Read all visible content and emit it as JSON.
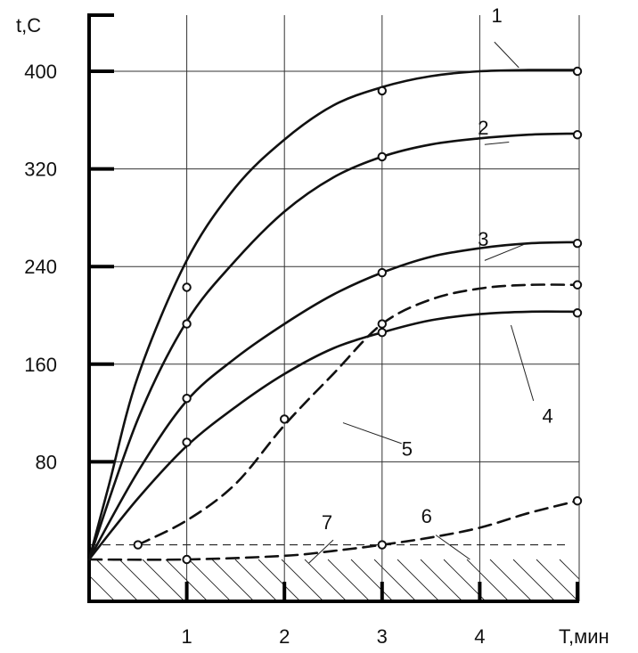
{
  "chart_data": {
    "type": "line",
    "title": "",
    "xlabel": "T,мин",
    "ylabel": "t,C",
    "xlim": [
      0,
      5
    ],
    "ylim": [
      -40,
      440
    ],
    "grid": true,
    "x_ticks": [
      {
        "value": 1,
        "label": "1"
      },
      {
        "value": 2,
        "label": "2"
      },
      {
        "value": 3,
        "label": "3"
      },
      {
        "value": 4,
        "label": "4"
      }
    ],
    "y_ticks": [
      {
        "value": 80,
        "label": "80"
      },
      {
        "value": 160,
        "label": "160"
      },
      {
        "value": 240,
        "label": "240"
      },
      {
        "value": 320,
        "label": "320"
      },
      {
        "value": 400,
        "label": "400"
      }
    ],
    "hatched_band": [
      -40,
      0
    ],
    "reference_line": {
      "y": 12,
      "style": "dashed"
    },
    "series": [
      {
        "name": "1",
        "style": "solid",
        "points": [
          [
            0,
            0
          ],
          [
            0.2,
            60
          ],
          [
            0.5,
            150
          ],
          [
            1,
            245
          ],
          [
            1.5,
            305
          ],
          [
            2,
            344
          ],
          [
            2.5,
            372
          ],
          [
            3,
            387
          ],
          [
            3.5,
            396
          ],
          [
            4,
            400
          ],
          [
            4.5,
            401
          ],
          [
            5,
            401
          ]
        ],
        "markers": [
          [
            1,
            223
          ],
          [
            3,
            384
          ],
          [
            5,
            400
          ]
        ]
      },
      {
        "name": "2",
        "style": "solid",
        "points": [
          [
            0,
            0
          ],
          [
            0.5,
            115
          ],
          [
            1,
            195
          ],
          [
            1.5,
            245
          ],
          [
            2,
            285
          ],
          [
            2.5,
            313
          ],
          [
            3,
            330
          ],
          [
            3.5,
            340
          ],
          [
            4,
            345
          ],
          [
            4.5,
            348
          ],
          [
            5,
            349
          ]
        ],
        "markers": [
          [
            1,
            193
          ],
          [
            3,
            330
          ],
          [
            5,
            348
          ]
        ]
      },
      {
        "name": "3",
        "style": "solid",
        "points": [
          [
            0,
            0
          ],
          [
            0.5,
            72
          ],
          [
            1,
            130
          ],
          [
            1.5,
            165
          ],
          [
            2,
            193
          ],
          [
            2.5,
            217
          ],
          [
            3,
            235
          ],
          [
            3.5,
            248
          ],
          [
            4,
            255
          ],
          [
            4.5,
            259
          ],
          [
            5,
            260
          ]
        ],
        "markers": [
          [
            1,
            132
          ],
          [
            3,
            235
          ],
          [
            5,
            259
          ]
        ]
      },
      {
        "name": "4",
        "style": "solid",
        "points": [
          [
            0,
            0
          ],
          [
            0.5,
            50
          ],
          [
            1,
            93
          ],
          [
            1.5,
            125
          ],
          [
            2,
            152
          ],
          [
            2.5,
            173
          ],
          [
            3,
            186
          ],
          [
            3.5,
            196
          ],
          [
            4,
            201
          ],
          [
            4.5,
            203
          ],
          [
            5,
            203
          ]
        ],
        "markers": [
          [
            1,
            96
          ],
          [
            3,
            186
          ],
          [
            5,
            202
          ]
        ]
      },
      {
        "name": "5",
        "style": "dashed",
        "points": [
          [
            0.5,
            12
          ],
          [
            1,
            32
          ],
          [
            1.5,
            62
          ],
          [
            2,
            110
          ],
          [
            2.5,
            152
          ],
          [
            3,
            193
          ],
          [
            3.5,
            213
          ],
          [
            4,
            222
          ],
          [
            4.5,
            225
          ],
          [
            5,
            225
          ]
        ],
        "markers": [
          [
            0.5,
            12
          ],
          [
            2,
            115
          ],
          [
            3,
            193
          ],
          [
            5,
            225
          ]
        ]
      },
      {
        "name": "6",
        "style": "dashed",
        "points": [
          [
            0,
            0
          ],
          [
            1,
            0
          ],
          [
            2,
            3
          ],
          [
            2.5,
            7
          ],
          [
            3,
            12
          ],
          [
            3.5,
            18
          ],
          [
            4,
            26
          ],
          [
            4.5,
            38
          ],
          [
            5,
            48
          ]
        ],
        "markers": [
          [
            1,
            0
          ],
          [
            3,
            12
          ],
          [
            5,
            48
          ]
        ]
      }
    ],
    "annotations": [
      {
        "text": "1",
        "target": "1"
      },
      {
        "text": "2",
        "target": "2"
      },
      {
        "text": "3",
        "target": "3"
      },
      {
        "text": "4",
        "target": "4"
      },
      {
        "text": "5",
        "target": "5"
      },
      {
        "text": "6",
        "target": "6"
      },
      {
        "text": "7",
        "target": "reference_line"
      }
    ]
  }
}
